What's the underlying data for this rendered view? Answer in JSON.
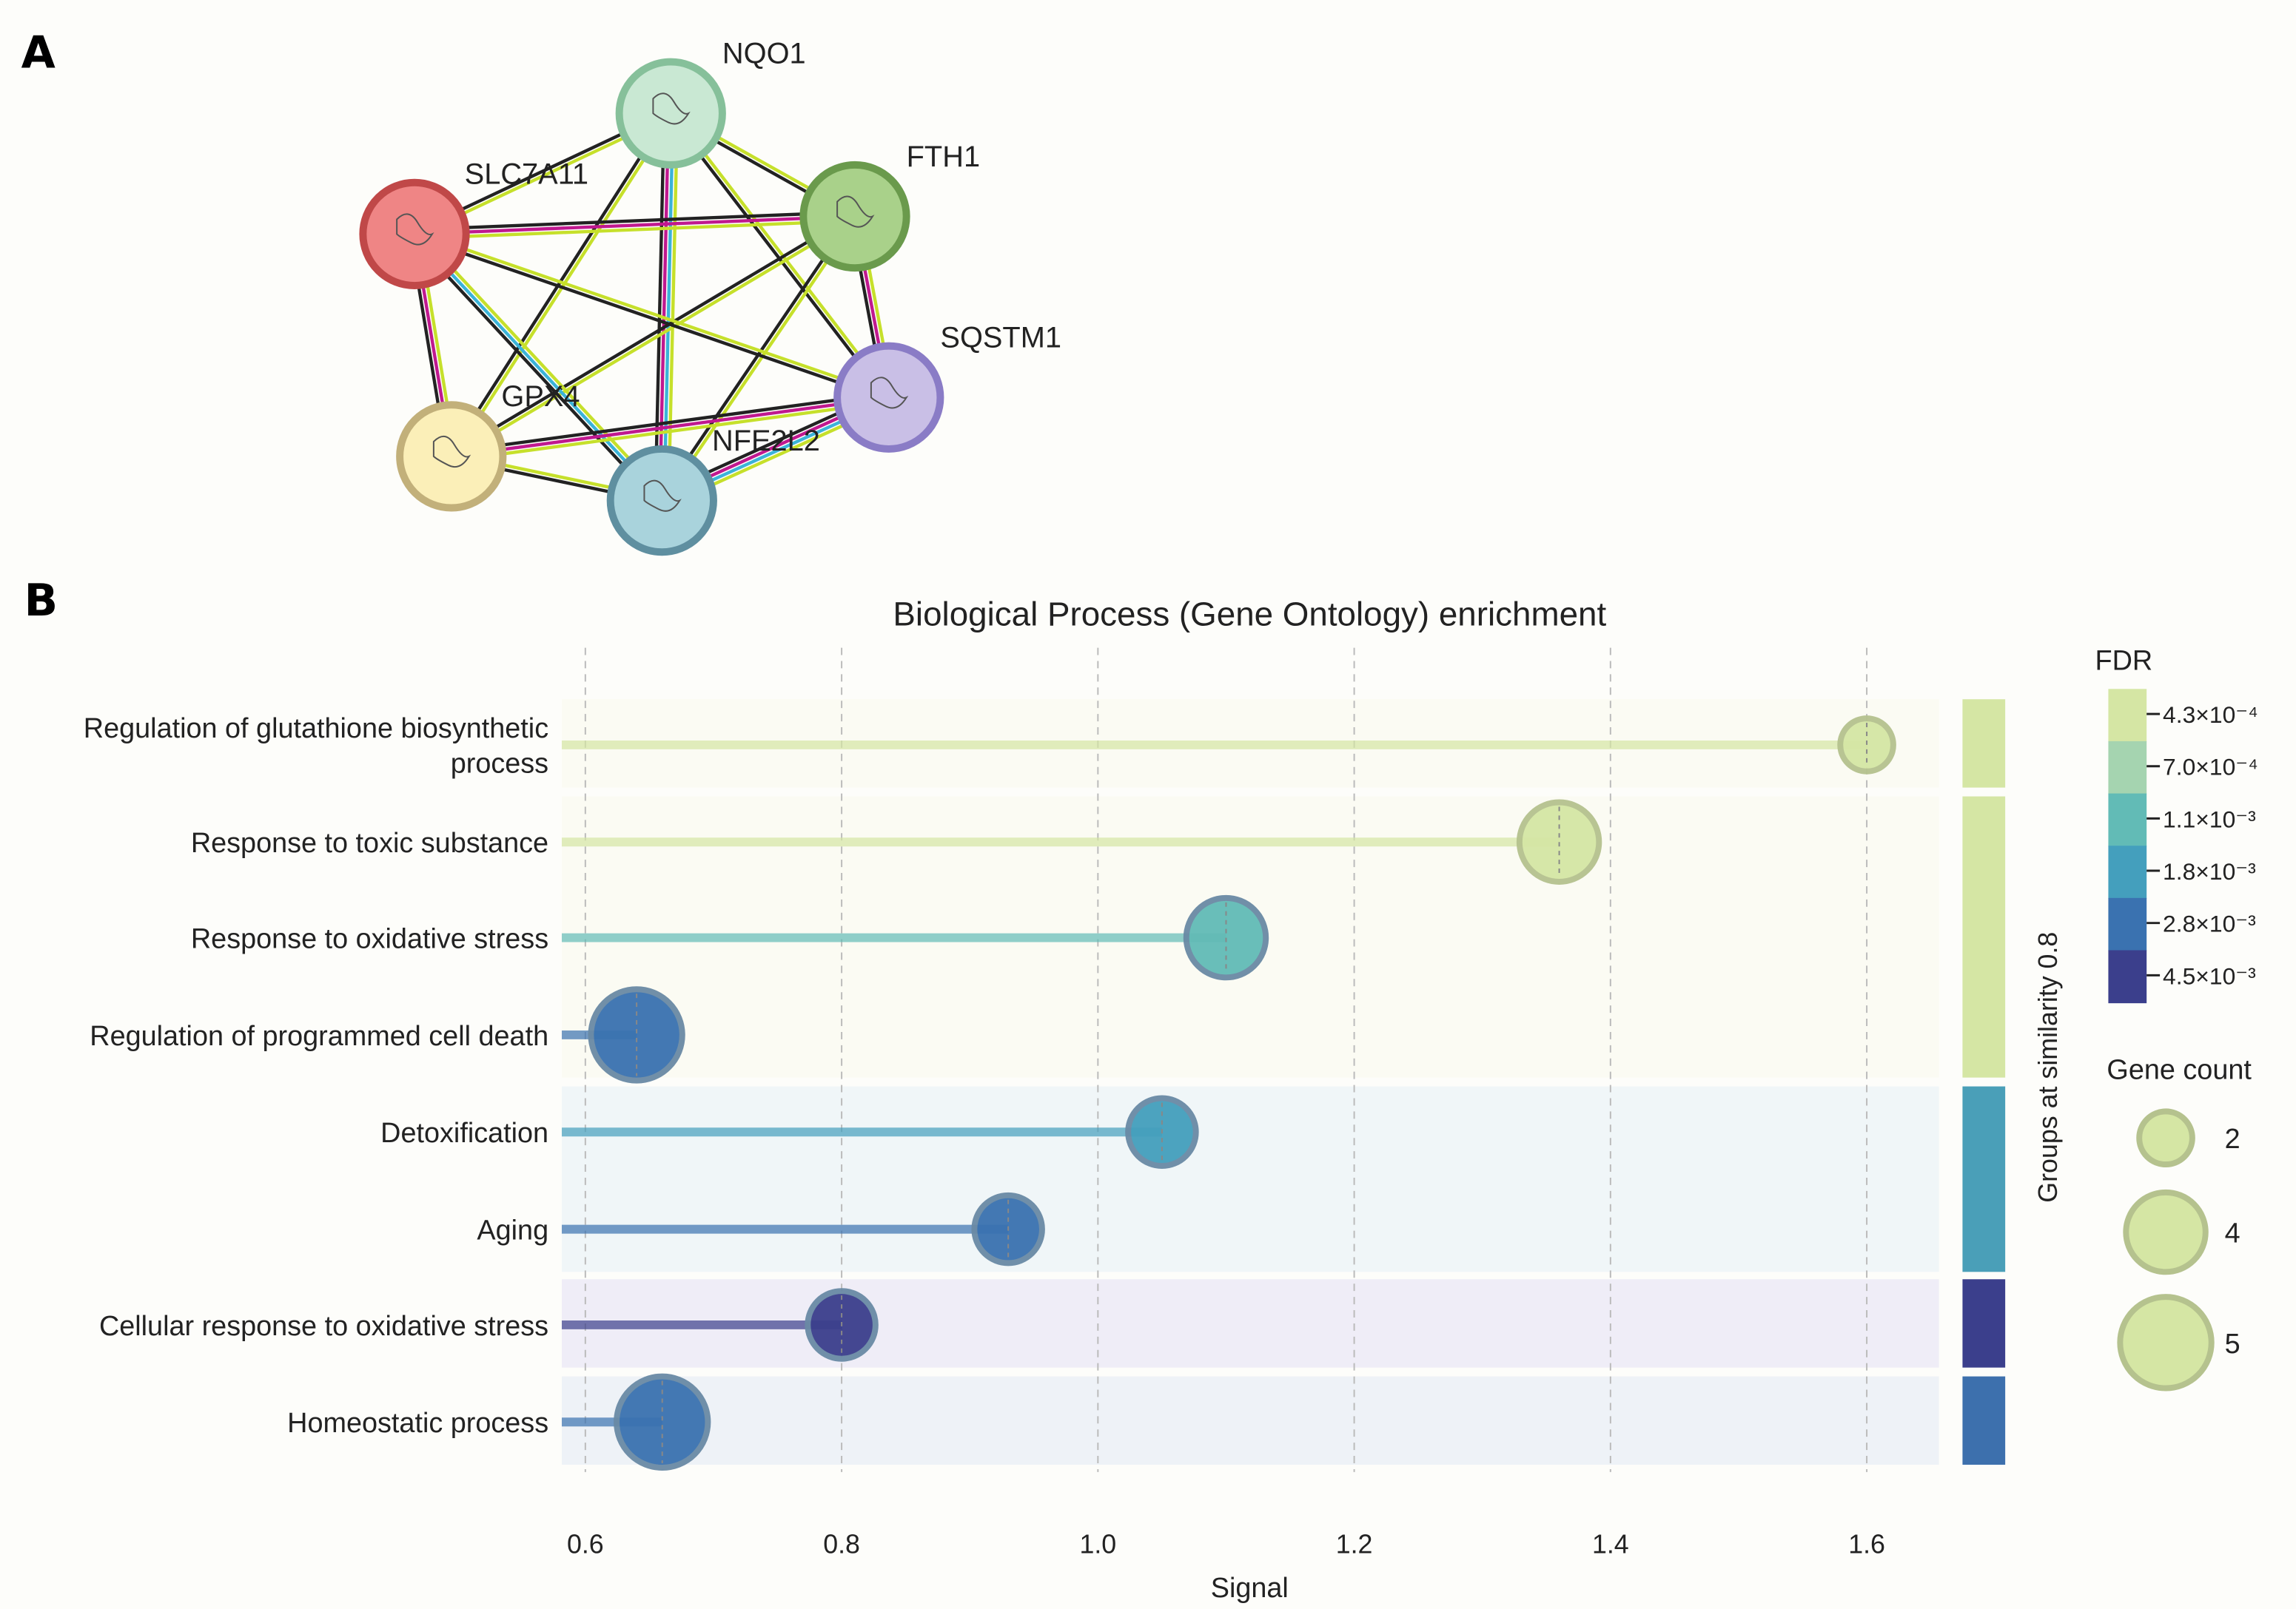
{
  "panels": {
    "a": "A",
    "b": "B"
  },
  "network": {
    "nodes": [
      {
        "name": "NQO1",
        "fill": "#c9e8d3",
        "stroke": "#86c09a"
      },
      {
        "name": "FTH1",
        "fill": "#a9d18a",
        "stroke": "#6a9a4c"
      },
      {
        "name": "SLC7A11",
        "fill": "#ef8585",
        "stroke": "#c04848"
      },
      {
        "name": "SQSTM1",
        "fill": "#c9bfe6",
        "stroke": "#8a7cc6"
      },
      {
        "name": "GPX4",
        "fill": "#fbefb8",
        "stroke": "#c2b07a"
      },
      {
        "name": "NFE2L2",
        "fill": "#a9d3dc",
        "stroke": "#5f8fa0"
      }
    ],
    "edges": [
      {
        "from": "NQO1",
        "to": "FTH1",
        "colors": [
          "#c6e02b",
          "#222222"
        ]
      },
      {
        "from": "NQO1",
        "to": "SLC7A11",
        "colors": [
          "#c6e02b",
          "#222222"
        ]
      },
      {
        "from": "NQO1",
        "to": "SQSTM1",
        "colors": [
          "#c6e02b",
          "#222222"
        ]
      },
      {
        "from": "NQO1",
        "to": "GPX4",
        "colors": [
          "#c6e02b",
          "#222222"
        ]
      },
      {
        "from": "NQO1",
        "to": "NFE2L2",
        "colors": [
          "#c6e02b",
          "#3bb3d8",
          "#c0188f",
          "#222222"
        ]
      },
      {
        "from": "FTH1",
        "to": "SLC7A11",
        "colors": [
          "#c6e02b",
          "#c0188f",
          "#222222"
        ]
      },
      {
        "from": "FTH1",
        "to": "SQSTM1",
        "colors": [
          "#c6e02b",
          "#c0188f",
          "#222222"
        ]
      },
      {
        "from": "FTH1",
        "to": "GPX4",
        "colors": [
          "#c6e02b",
          "#222222"
        ]
      },
      {
        "from": "FTH1",
        "to": "NFE2L2",
        "colors": [
          "#c6e02b",
          "#222222"
        ]
      },
      {
        "from": "SLC7A11",
        "to": "SQSTM1",
        "colors": [
          "#c6e02b",
          "#222222"
        ]
      },
      {
        "from": "SLC7A11",
        "to": "GPX4",
        "colors": [
          "#c6e02b",
          "#c0188f",
          "#222222"
        ]
      },
      {
        "from": "SLC7A11",
        "to": "NFE2L2",
        "colors": [
          "#c6e02b",
          "#3bb3d8",
          "#222222"
        ]
      },
      {
        "from": "SQSTM1",
        "to": "GPX4",
        "colors": [
          "#c6e02b",
          "#c0188f",
          "#222222"
        ]
      },
      {
        "from": "SQSTM1",
        "to": "NFE2L2",
        "colors": [
          "#c6e02b",
          "#3bb3d8",
          "#c0188f",
          "#222222"
        ]
      },
      {
        "from": "GPX4",
        "to": "NFE2L2",
        "colors": [
          "#c6e02b",
          "#222222"
        ]
      }
    ]
  },
  "chart_data": {
    "type": "scatter",
    "subtype": "lollipop",
    "title": "Biological Process (Gene Ontology) enrichment",
    "xlabel": "Signal",
    "xlim": [
      0.58,
      1.66
    ],
    "xticks": [
      "0.6",
      "0.8",
      "1.0",
      "1.2",
      "1.4",
      "1.6"
    ],
    "grid": "vertical dashed",
    "group_axis_label": "Groups at similarity 0.8",
    "categories": [
      {
        "label": [
          "Regulation of glutathione biosynthetic",
          "process"
        ],
        "signal": 1.6,
        "gene_count": 2,
        "fdr_level": 0,
        "group": 0
      },
      {
        "label": [
          "Response to toxic substance"
        ],
        "signal": 1.36,
        "gene_count": 4,
        "fdr_level": 0,
        "group": 1
      },
      {
        "label": [
          "Response to oxidative stress"
        ],
        "signal": 1.1,
        "gene_count": 4,
        "fdr_level": 2,
        "group": 1
      },
      {
        "label": [
          "Regulation of programmed cell death"
        ],
        "signal": 0.64,
        "gene_count": 5,
        "fdr_level": 4,
        "group": 1
      },
      {
        "label": [
          "Detoxification"
        ],
        "signal": 1.05,
        "gene_count": 3,
        "fdr_level": 3,
        "group": 2
      },
      {
        "label": [
          "Aging"
        ],
        "signal": 0.93,
        "gene_count": 3,
        "fdr_level": 4,
        "group": 2
      },
      {
        "label": [
          "Cellular response to oxidative stress"
        ],
        "signal": 0.8,
        "gene_count": 3,
        "fdr_level": 5,
        "group": 3
      },
      {
        "label": [
          "Homeostatic process"
        ],
        "signal": 0.66,
        "gene_count": 5,
        "fdr_level": 4,
        "group": 4
      }
    ],
    "groups": [
      {
        "rows": [
          0
        ],
        "band": "#fbfbf3",
        "bar": "#d5e6a4"
      },
      {
        "rows": [
          1,
          2,
          3
        ],
        "band": "#fbfbf3",
        "bar": "#d5e6a4"
      },
      {
        "rows": [
          4,
          5
        ],
        "band": "#f0f6f8",
        "bar": "#4a9fb8"
      },
      {
        "rows": [
          6
        ],
        "band": "#efedf7",
        "bar": "#3b3f8c"
      },
      {
        "rows": [
          7
        ],
        "band": "#eef2f7",
        "bar": "#3d70ad"
      }
    ],
    "fdr_legend": {
      "title": "FDR",
      "levels": [
        {
          "label": "4.3×10⁻⁴",
          "color": "#d5e6a4"
        },
        {
          "label": "7.0×10⁻⁴",
          "color": "#a5d4b0"
        },
        {
          "label": "1.1×10⁻³",
          "color": "#62bbb6"
        },
        {
          "label": "1.8×10⁻³",
          "color": "#449fbd"
        },
        {
          "label": "2.8×10⁻³",
          "color": "#3a72b0"
        },
        {
          "label": "4.5×10⁻³",
          "color": "#3b3f8c"
        }
      ]
    },
    "size_legend": {
      "title": "Gene count",
      "values": [
        2,
        4,
        5
      ]
    }
  }
}
